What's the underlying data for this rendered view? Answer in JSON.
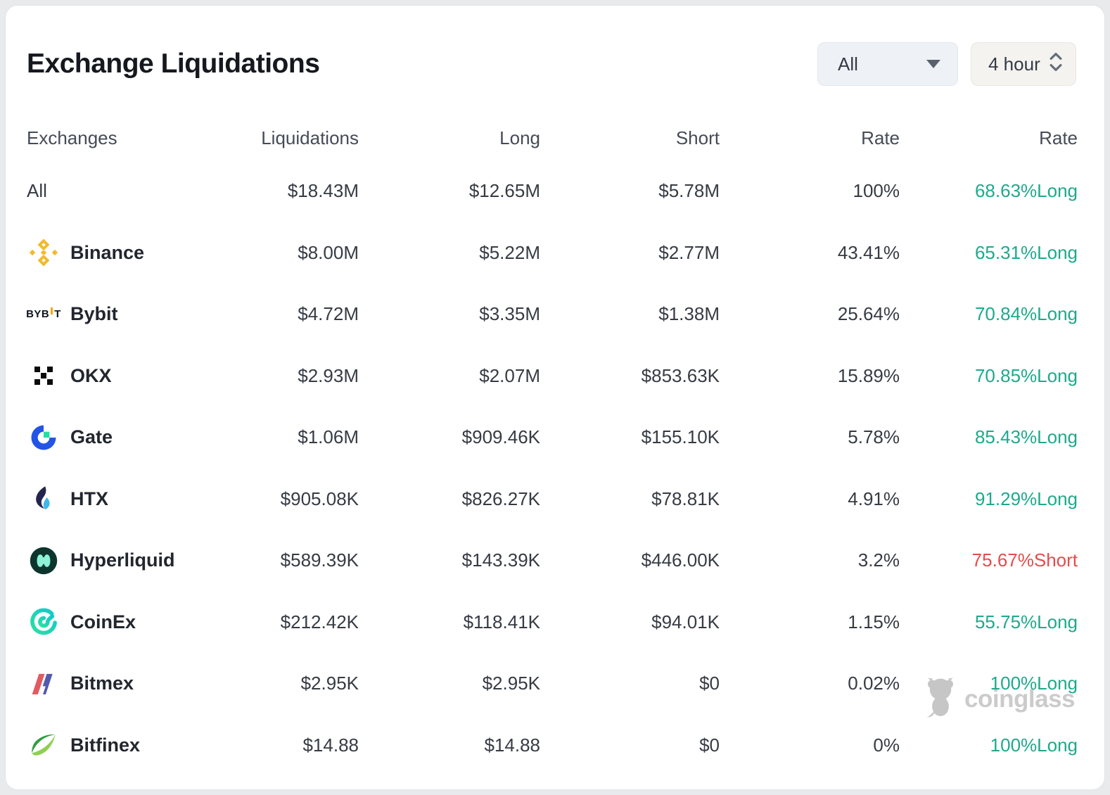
{
  "header": {
    "title": "Exchange Liquidations",
    "filters": {
      "exchange": "All",
      "interval": "4 hour"
    }
  },
  "table": {
    "columns": [
      "Exchanges",
      "Liquidations",
      "Long",
      "Short",
      "Rate",
      "Rate"
    ],
    "rows": [
      {
        "exchange": "All",
        "icon": "",
        "liquidations": "$18.43M",
        "long": "$12.65M",
        "short": "$5.78M",
        "rate": "100%",
        "long_short_rate": "68.63%Long",
        "direction": "long"
      },
      {
        "exchange": "Binance",
        "icon": "binance-icon",
        "liquidations": "$8.00M",
        "long": "$5.22M",
        "short": "$2.77M",
        "rate": "43.41%",
        "long_short_rate": "65.31%Long",
        "direction": "long"
      },
      {
        "exchange": "Bybit",
        "icon": "bybit-icon",
        "liquidations": "$4.72M",
        "long": "$3.35M",
        "short": "$1.38M",
        "rate": "25.64%",
        "long_short_rate": "70.84%Long",
        "direction": "long"
      },
      {
        "exchange": "OKX",
        "icon": "okx-icon",
        "liquidations": "$2.93M",
        "long": "$2.07M",
        "short": "$853.63K",
        "rate": "15.89%",
        "long_short_rate": "70.85%Long",
        "direction": "long"
      },
      {
        "exchange": "Gate",
        "icon": "gate-icon",
        "liquidations": "$1.06M",
        "long": "$909.46K",
        "short": "$155.10K",
        "rate": "5.78%",
        "long_short_rate": "85.43%Long",
        "direction": "long"
      },
      {
        "exchange": "HTX",
        "icon": "htx-icon",
        "liquidations": "$905.08K",
        "long": "$826.27K",
        "short": "$78.81K",
        "rate": "4.91%",
        "long_short_rate": "91.29%Long",
        "direction": "long"
      },
      {
        "exchange": "Hyperliquid",
        "icon": "hyperliquid-icon",
        "liquidations": "$589.39K",
        "long": "$143.39K",
        "short": "$446.00K",
        "rate": "3.2%",
        "long_short_rate": "75.67%Short",
        "direction": "short"
      },
      {
        "exchange": "CoinEx",
        "icon": "coinex-icon",
        "liquidations": "$212.42K",
        "long": "$118.41K",
        "short": "$94.01K",
        "rate": "1.15%",
        "long_short_rate": "55.75%Long",
        "direction": "long"
      },
      {
        "exchange": "Bitmex",
        "icon": "bitmex-icon",
        "liquidations": "$2.95K",
        "long": "$2.95K",
        "short": "$0",
        "rate": "0.02%",
        "long_short_rate": "100%Long",
        "direction": "long"
      },
      {
        "exchange": "Bitfinex",
        "icon": "bitfinex-icon",
        "liquidations": "$14.88",
        "long": "$14.88",
        "short": "$0",
        "rate": "0%",
        "long_short_rate": "100%Long",
        "direction": "long"
      }
    ]
  },
  "watermark": {
    "label": "coinglass"
  },
  "colors": {
    "long": "#1FA98C",
    "short": "#E54C4C",
    "binance_yellow": "#F3BA2F"
  }
}
